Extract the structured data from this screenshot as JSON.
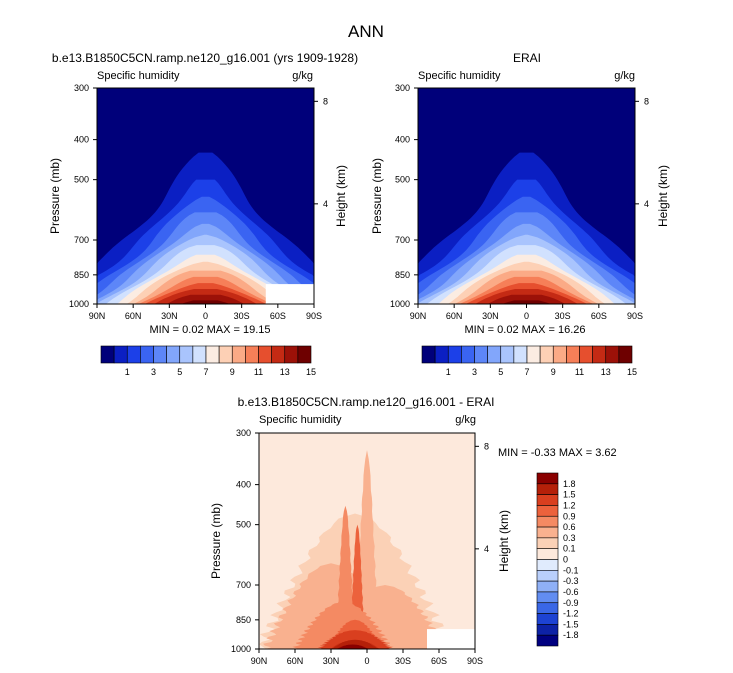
{
  "title": "ANN",
  "colors": {
    "blues": [
      "#00007a",
      "#0b1fc3",
      "#1c40e8",
      "#3a64f2",
      "#5d86f8",
      "#82a6fb",
      "#a9c4fd",
      "#d1e1fe",
      "#fbece2",
      "#fdd0b5",
      "#fbaa86",
      "#f67f58",
      "#e64f2e",
      "#c42a14",
      "#9c1108",
      "#6e0000"
    ],
    "diff_pos": [
      "#fde9dc",
      "#fbd1b6",
      "#f9b18f",
      "#f48a63",
      "#ec623c",
      "#d93f1f",
      "#b52009",
      "#8a0000"
    ],
    "diff_neg": [
      "#e0ebfd",
      "#b9cffb",
      "#8fb0f6",
      "#628df1",
      "#3a67e6",
      "#1d43d3",
      "#0d22a6",
      "#000080"
    ]
  },
  "panels": {
    "model": {
      "title": "b.e13.B1850C5CN.ramp.ne120_g16.001 (yrs 1909-1928)",
      "left_label": "Specific humidity",
      "right_label": "g/kg",
      "min_max": "MIN =  0.02  MAX =  19.15",
      "ylabel": "Pressure (mb)",
      "ylabel_right": "Height (km)"
    },
    "obs": {
      "title": "ERAI",
      "left_label": "Specific humidity",
      "right_label": "g/kg",
      "min_max": "MIN =  0.02  MAX =  16.26",
      "ylabel": "Pressure (mb)",
      "ylabel_right": "Height (km)"
    },
    "diff": {
      "title": "b.e13.B1850C5CN.ramp.ne120_g16.001 - ERAI",
      "left_label": "Specific humidity",
      "right_label": "g/kg",
      "min_max": "MIN =  -0.33  MAX =   3.62",
      "ylabel": "Pressure (mb)",
      "ylabel_right": "Height (km)"
    }
  },
  "chart_data": [
    {
      "type": "heatmap",
      "panel": "model",
      "title": "b.e13.B1850C5CN.ramp.ne120_g16.001 (yrs 1909-1928)",
      "variable": "Specific humidity",
      "units": "g/kg",
      "xlabel": "",
      "ylabel": "Pressure (mb)",
      "ylabel_right": "Height (km)",
      "x_ticks": [
        "90N",
        "60N",
        "30N",
        "0",
        "30S",
        "60S",
        "90S"
      ],
      "x_range": [
        90,
        -90
      ],
      "y_ticks": [
        300,
        400,
        500,
        700,
        850,
        1000
      ],
      "y_range": [
        300,
        1000
      ],
      "height_ticks_km": [
        8,
        4
      ],
      "min": 0.02,
      "max": 19.15,
      "missing_region": {
        "lat_from": -50,
        "lat_to": -90,
        "p_from": 895
      },
      "peak_lat": 0,
      "lower_contours": true
    },
    {
      "type": "heatmap",
      "panel": "obs",
      "title": "ERAI",
      "variable": "Specific humidity",
      "units": "g/kg",
      "xlabel": "",
      "ylabel": "Pressure (mb)",
      "ylabel_right": "Height (km)",
      "x_ticks": [
        "90N",
        "60N",
        "30N",
        "0",
        "30S",
        "60S",
        "90S"
      ],
      "x_range": [
        90,
        -90
      ],
      "y_ticks": [
        300,
        400,
        500,
        700,
        850,
        1000
      ],
      "y_range": [
        300,
        1000
      ],
      "height_ticks_km": [
        8,
        4
      ],
      "min": 0.02,
      "max": 16.26,
      "peak_lat": 0
    },
    {
      "type": "heatmap",
      "panel": "diff",
      "title": "b.e13.B1850C5CN.ramp.ne120_g16.001 - ERAI",
      "variable": "Specific humidity",
      "units": "g/kg",
      "xlabel": "",
      "ylabel": "Pressure (mb)",
      "ylabel_right": "Height (km)",
      "x_ticks": [
        "90N",
        "60N",
        "30N",
        "0",
        "30S",
        "60S",
        "90S"
      ],
      "x_range": [
        90,
        -90
      ],
      "y_ticks": [
        300,
        400,
        500,
        700,
        850,
        1000
      ],
      "y_range": [
        300,
        1000
      ],
      "height_ticks_km": [
        8,
        4
      ],
      "min": -0.33,
      "max": 3.62,
      "missing_region": {
        "lat_from": -50,
        "lat_to": -90,
        "p_from": 895
      }
    },
    {
      "type": "colorbar",
      "orientation": "horizontal",
      "labels": [
        "1",
        "3",
        "5",
        "7",
        "9",
        "11",
        "13",
        "15"
      ],
      "levels": [
        0,
        1,
        2,
        3,
        4,
        5,
        6,
        7,
        8,
        9,
        10,
        11,
        12,
        13,
        14,
        15,
        16
      ]
    },
    {
      "type": "colorbar",
      "orientation": "vertical",
      "labels": [
        "1.8",
        "1.5",
        "1.2",
        "0.9",
        "0.6",
        "0.3",
        "0.1",
        "0",
        "-0.1",
        "-0.3",
        "-0.6",
        "-0.9",
        "-1.2",
        "-1.5",
        "-1.8"
      ],
      "levels": [
        1.8,
        1.5,
        1.2,
        0.9,
        0.6,
        0.3,
        0.1,
        0,
        -0.1,
        -0.3,
        -0.6,
        -0.9,
        -1.2,
        -1.5,
        -1.8
      ]
    }
  ]
}
